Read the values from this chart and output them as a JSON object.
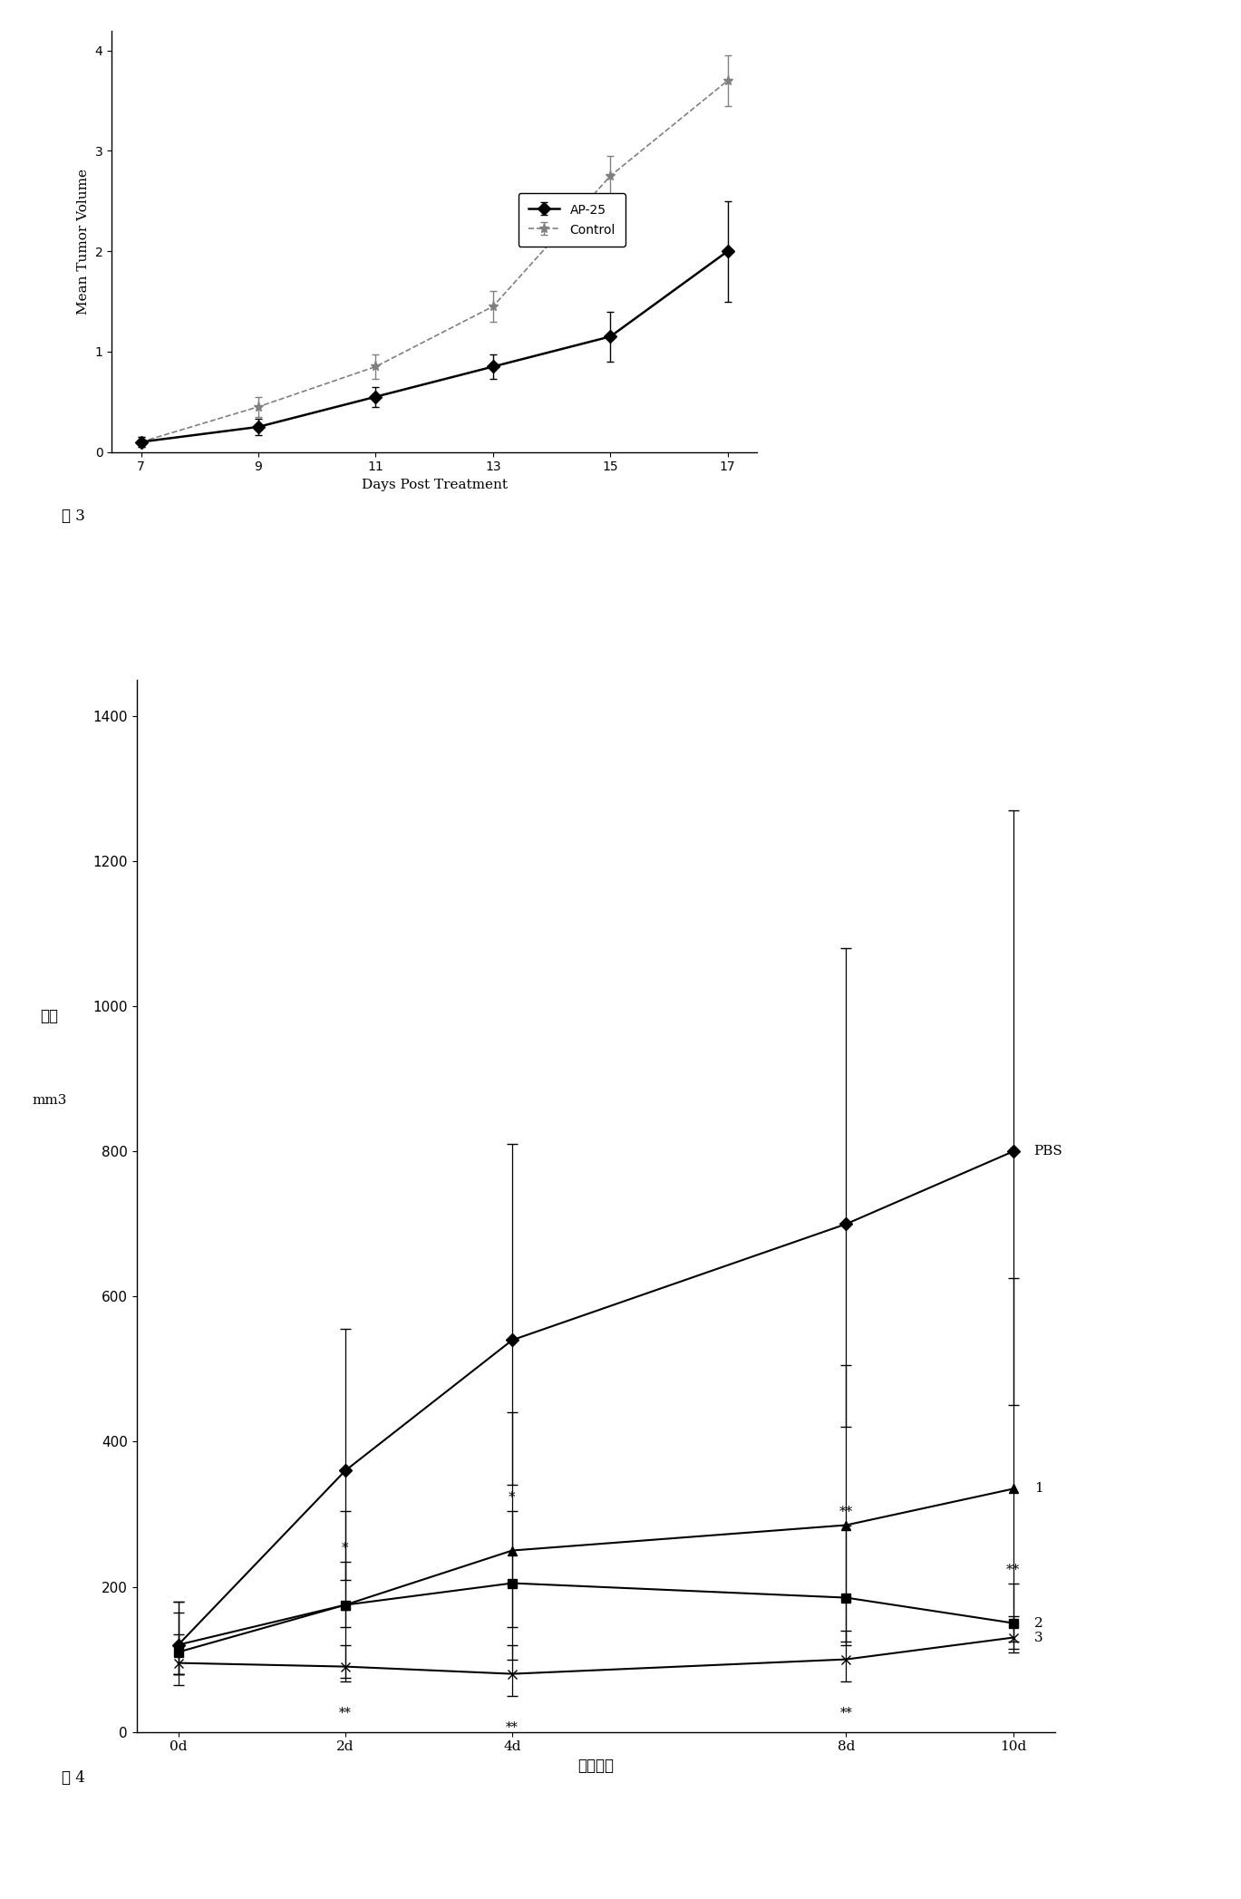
{
  "fig1": {
    "x": [
      7,
      9,
      11,
      13,
      15,
      17
    ],
    "ap25_y": [
      0.1,
      0.25,
      0.55,
      0.85,
      1.15,
      2.0
    ],
    "ap25_yerr": [
      0.05,
      0.08,
      0.1,
      0.12,
      0.25,
      0.5
    ],
    "control_y": [
      0.1,
      0.45,
      0.85,
      1.45,
      2.75,
      3.7
    ],
    "control_yerr": [
      0.05,
      0.1,
      0.12,
      0.15,
      0.2,
      0.25
    ],
    "ylabel": "Mean Tumor Volume",
    "xlabel": "Days Post Treatment",
    "ylim": [
      0,
      4.2
    ],
    "yticks": [
      0,
      1,
      2,
      3,
      4
    ],
    "xticks": [
      7,
      9,
      11,
      13,
      15,
      17
    ],
    "legend_ap25": "AP-25",
    "legend_control": "Control",
    "fig3_label": "图 3"
  },
  "fig2": {
    "x": [
      0,
      2,
      4,
      8,
      10
    ],
    "x_labels": [
      "0d",
      "2d",
      "4d",
      "8d",
      "10d"
    ],
    "pbs_y": [
      120,
      360,
      540,
      700,
      800
    ],
    "pbs_yerr_up": [
      60,
      195,
      270,
      380,
      470
    ],
    "pbs_yerr_down": [
      40,
      150,
      200,
      280,
      350
    ],
    "line1_y": [
      120,
      175,
      250,
      285,
      335
    ],
    "line1_yerr_up": [
      60,
      130,
      190,
      220,
      290
    ],
    "line1_yerr_down": [
      40,
      100,
      150,
      160,
      210
    ],
    "line2_y": [
      110,
      175,
      205,
      185,
      150
    ],
    "line2_yerr_up": [
      55,
      60,
      100,
      100,
      55
    ],
    "line2_yerr_down": [
      30,
      30,
      60,
      65,
      35
    ],
    "line3_y": [
      95,
      90,
      80,
      100,
      130
    ],
    "line3_yerr_up": [
      40,
      30,
      40,
      40,
      30
    ],
    "line3_yerr_down": [
      30,
      20,
      30,
      30,
      20
    ],
    "ylabel1": "体积",
    "ylabel2": "mm3",
    "xlabel": "治疗天数",
    "ylim": [
      0,
      1450
    ],
    "yticks": [
      0,
      200,
      400,
      600,
      800,
      1000,
      1200,
      1400
    ],
    "pbs_label": "PBS",
    "line1_label": "1",
    "line2_label": "2",
    "line3_label": "3",
    "fig4_label": "图 4"
  }
}
